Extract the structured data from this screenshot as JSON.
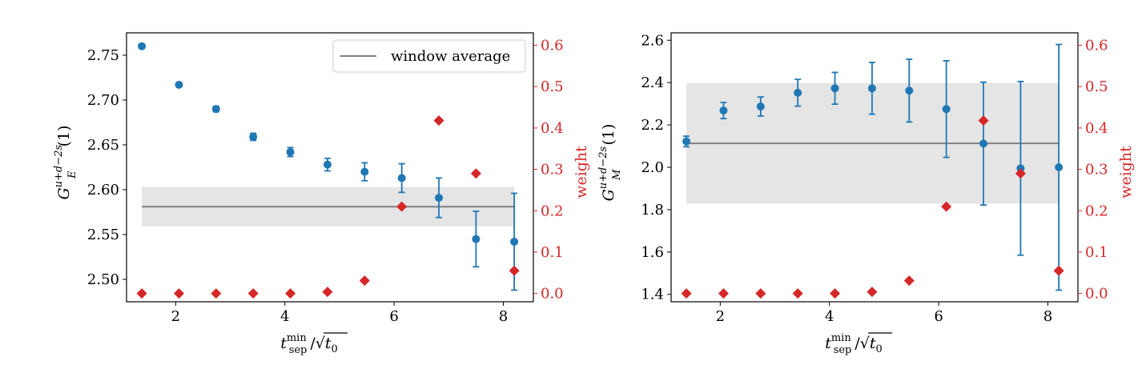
{
  "colors": {
    "points": "#1f77b4",
    "weight": "#d62728",
    "average": "#808080",
    "band": "#e5e5e5",
    "axis": "#000000"
  },
  "legend": {
    "average_label": "window average"
  },
  "chart_data": [
    {
      "type": "scatter",
      "panel": "left",
      "xlabel": "t_sep^min/√t0",
      "ylabel": "G_E^{u+d−2s}(1)",
      "y2label": "weight",
      "xlim": [
        1.1,
        8.55
      ],
      "ylim": [
        2.475,
        2.775
      ],
      "y2lim": [
        -0.02,
        0.63
      ],
      "xticks": [
        2,
        4,
        6,
        8
      ],
      "yticks": [
        2.5,
        2.55,
        2.6,
        2.65,
        2.7,
        2.75
      ],
      "y2ticks": [
        0.0,
        0.1,
        0.2,
        0.3,
        0.4,
        0.5,
        0.6
      ],
      "grid": false,
      "legend_position": "upper-right",
      "window_average": {
        "value": 2.581,
        "lower": 2.559,
        "upper": 2.603,
        "x_range": [
          1.38,
          8.2
        ]
      },
      "series": [
        {
          "kind": "errorbar",
          "x": [
            1.38,
            2.06,
            2.74,
            3.42,
            4.1,
            4.78,
            5.46,
            6.14,
            6.82,
            7.5,
            8.2
          ],
          "y": [
            2.76,
            2.717,
            2.69,
            2.659,
            2.642,
            2.628,
            2.62,
            2.613,
            2.591,
            2.545,
            2.542
          ],
          "yerr": [
            0.002,
            0.002,
            0.003,
            0.004,
            0.005,
            0.007,
            0.01,
            0.016,
            0.022,
            0.031,
            0.054
          ]
        },
        {
          "kind": "weight",
          "name": "weight",
          "x": [
            1.38,
            2.06,
            2.74,
            3.42,
            4.1,
            4.78,
            5.46,
            6.14,
            6.82,
            7.5,
            8.2
          ],
          "values": [
            0.0,
            0.0,
            0.0,
            0.0,
            0.0,
            0.004,
            0.031,
            0.21,
            0.418,
            0.29,
            0.055
          ]
        }
      ]
    },
    {
      "type": "scatter",
      "panel": "right",
      "xlabel": "t_sep^min/√t0",
      "ylabel": "G_M^{u+d−2s}(1)",
      "y2label": "weight",
      "xlim": [
        1.1,
        8.55
      ],
      "ylim": [
        1.365,
        2.635
      ],
      "y2lim": [
        -0.02,
        0.63
      ],
      "xticks": [
        2,
        4,
        6,
        8
      ],
      "yticks": [
        1.4,
        1.6,
        1.8,
        2.0,
        2.2,
        2.4,
        2.6
      ],
      "y2ticks": [
        0.0,
        0.1,
        0.2,
        0.3,
        0.4,
        0.5,
        0.6
      ],
      "grid": false,
      "legend_position": "none",
      "window_average": {
        "value": 2.113,
        "lower": 1.828,
        "upper": 2.398,
        "x_range": [
          1.38,
          8.2
        ]
      },
      "series": [
        {
          "kind": "errorbar",
          "x": [
            1.38,
            2.06,
            2.74,
            3.42,
            4.1,
            4.78,
            5.46,
            6.14,
            6.82,
            7.5,
            8.2
          ],
          "y": [
            2.122,
            2.268,
            2.287,
            2.352,
            2.373,
            2.373,
            2.362,
            2.275,
            2.112,
            1.995,
            2.0
          ],
          "yerr": [
            0.025,
            0.038,
            0.045,
            0.063,
            0.075,
            0.122,
            0.148,
            0.228,
            0.29,
            0.41,
            0.58
          ]
        },
        {
          "kind": "weight",
          "name": "weight",
          "x": [
            1.38,
            2.06,
            2.74,
            3.42,
            4.1,
            4.78,
            5.46,
            6.14,
            6.82,
            7.5,
            8.2
          ],
          "values": [
            0.0,
            0.0,
            0.0,
            0.0,
            0.0,
            0.004,
            0.031,
            0.21,
            0.418,
            0.29,
            0.055
          ]
        }
      ]
    }
  ]
}
